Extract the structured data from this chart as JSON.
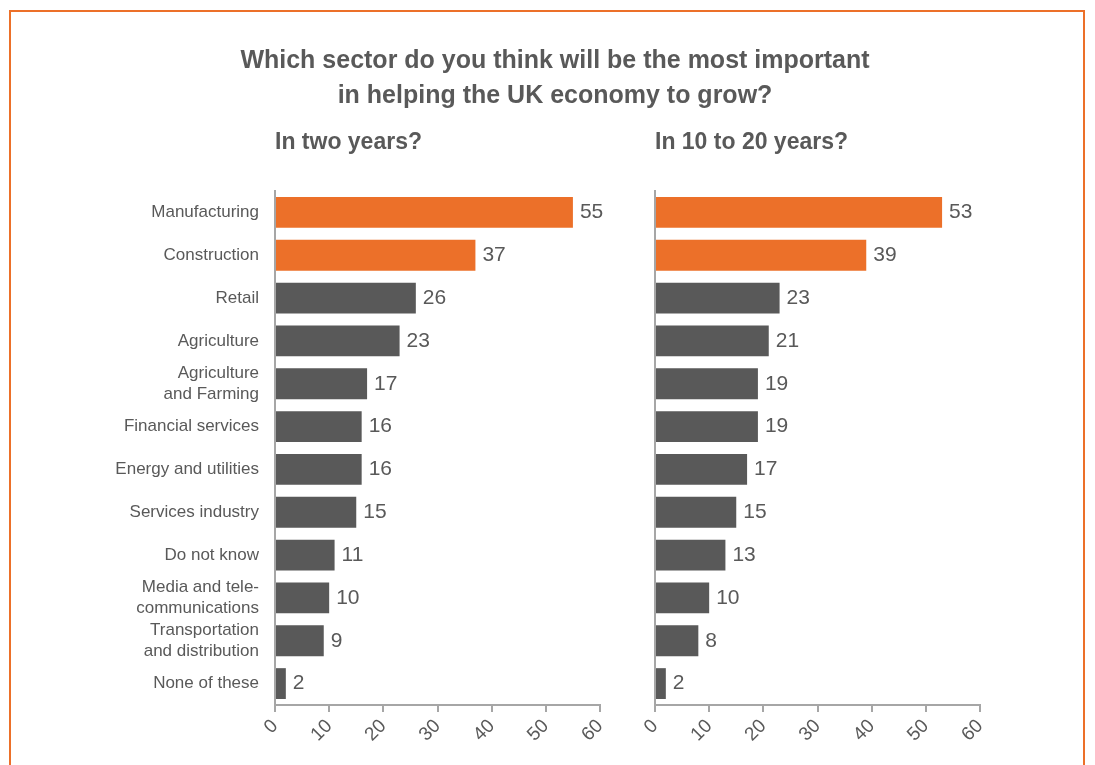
{
  "chart_data": [
    {
      "type": "bar",
      "orientation": "horizontal",
      "title": "Which sector do you think will be the most important\nin helping the UK economy to grow?",
      "subtitle": "In two years?",
      "categories": [
        "Manufacturing",
        "Construction",
        "Retail",
        "Agriculture",
        "Agriculture\nand Farming",
        "Financial services",
        "Energy and utilities",
        "Services industry",
        "Do not know",
        "Media and tele-\ncommunications",
        "Transportation\nand distribution",
        "None of these"
      ],
      "values": [
        55,
        37,
        26,
        23,
        17,
        16,
        16,
        15,
        11,
        10,
        9,
        2
      ],
      "colors": [
        "#ec7029",
        "#ec7029",
        "#595959",
        "#595959",
        "#595959",
        "#595959",
        "#595959",
        "#595959",
        "#595959",
        "#595959",
        "#595959",
        "#595959"
      ],
      "xlim": [
        0,
        60
      ],
      "xticks": [
        0,
        10,
        20,
        30,
        40,
        50,
        60
      ],
      "data_labels": true
    },
    {
      "type": "bar",
      "orientation": "horizontal",
      "subtitle": "In 10 to 20 years?",
      "categories": [
        null,
        null,
        null,
        null,
        null,
        null,
        null,
        null,
        null,
        null,
        null,
        null
      ],
      "values": [
        53,
        39,
        23,
        21,
        19,
        19,
        17,
        15,
        13,
        10,
        8,
        2
      ],
      "colors": [
        "#ec7029",
        "#ec7029",
        "#595959",
        "#595959",
        "#595959",
        "#595959",
        "#595959",
        "#595959",
        "#595959",
        "#595959",
        "#595959",
        "#595959"
      ],
      "xlim": [
        0,
        60
      ],
      "xticks": [
        0,
        10,
        20,
        30,
        40,
        50,
        60
      ],
      "data_labels": true,
      "tick_labels": "x"
    }
  ]
}
